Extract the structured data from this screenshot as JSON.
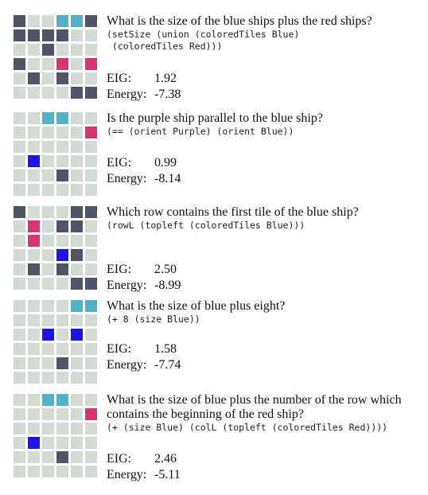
{
  "colors": {
    "empty": "#d3d9d3",
    "ship": "#4f5565",
    "blue": "#52b3c7",
    "red": "#d83471",
    "purple": "#1f14e8"
  },
  "stat_labels": {
    "eig": "EIG:",
    "energy": "Energy:"
  },
  "examples": [
    {
      "question": "What is the size of the blue ships plus the red ships?",
      "program": "(setSize (union (coloredTiles Blue)\n (coloredTiles Red)))",
      "eig": "1.92",
      "energy": "-7.38",
      "board": [
        "DEEBBD",
        "DDDDEE",
        "EEDEEE",
        "DEERER",
        "EDEDEE",
        "EEEEDD"
      ]
    },
    {
      "question": "Is the purple ship parallel to the blue ship?",
      "program": "(== (orient Purple) (orient Blue))",
      "eig": "0.99",
      "energy": "-8.14",
      "board": [
        "EEBBEE",
        "EEEEER",
        "EEEEEE",
        "EPEEEE",
        "EEEDEE",
        "EEEEEE"
      ]
    },
    {
      "question": "Which row contains the first tile of the blue ship?",
      "program": "(rowL (topleft (coloredTiles Blue)))",
      "eig": "2.50",
      "energy": "-8.99",
      "board": [
        "DEEEDD",
        "EREDDE",
        "EREEEE",
        "EEEPDE",
        "EDEDEE",
        "EEEEDD"
      ]
    },
    {
      "question": "What is the size of blue plus eight?",
      "program": "(+ 8 (size Blue))",
      "eig": "1.58",
      "energy": "-7.74",
      "board": [
        "EEEEBB",
        "EEEEEE",
        "EEPEPE",
        "EEEEEE",
        "EEEDEE",
        "EEEEEE"
      ]
    },
    {
      "question": "What is the size of blue plus the number of the row which contains the beginning of the red ship?",
      "program": "(+ (size Blue) (colL (topleft (coloredTiles Red))))",
      "eig": "2.46",
      "energy": "-5.11",
      "board": [
        "EEBBEE",
        "EEEEER",
        "EEEEEE",
        "EPEEEE",
        "EEEDEE",
        "EEEEEE"
      ]
    }
  ]
}
